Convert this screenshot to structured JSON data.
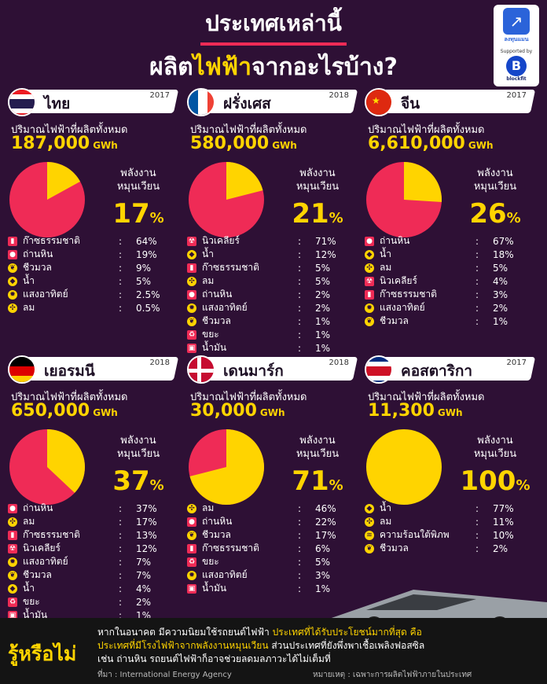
{
  "title": {
    "line1": "ประเทศเหล่านี้",
    "line2_a": "ผลิต",
    "line2_hl": "ไฟฟ้า",
    "line2_b": "จากอะไรบ้าง?"
  },
  "logo": {
    "brand": "ลงทุนแมน",
    "supported": "Supported by",
    "sponsor_mark": "B",
    "sponsor": "blockfit"
  },
  "common": {
    "gen_label": "ปริมาณไฟฟ้าที่ผลิตทั้งหมด",
    "unit": "GWh",
    "ren_line1": "พลังงาน",
    "ren_line2": "หมุนเวียน",
    "colon": ":"
  },
  "colors": {
    "pie_main": "#ef2b56",
    "pie_renewable": "#ffd400",
    "background": "#2e1035"
  },
  "countries": [
    {
      "name": "ไทย",
      "year": "2017",
      "total": "187,000",
      "renewable": "17",
      "renewable_pct_symbol": "%",
      "items": [
        {
          "label": "ก๊าซธรรมชาติ",
          "value": "64%",
          "icon": "gas-icon"
        },
        {
          "label": "ถ่านหิน",
          "value": "19%",
          "icon": "coal-icon"
        },
        {
          "label": "ชีวมวล",
          "value": "9%",
          "icon": "leaf-icon"
        },
        {
          "label": "น้ำ",
          "value": "5%",
          "icon": "water-icon"
        },
        {
          "label": "แสงอาทิตย์",
          "value": "2.5%",
          "icon": "sun-icon"
        },
        {
          "label": "ลม",
          "value": "0.5%",
          "icon": "wind-icon"
        }
      ]
    },
    {
      "name": "ฝรั่งเศส",
      "year": "2018",
      "total": "580,000",
      "renewable": "21",
      "renewable_pct_symbol": "%",
      "items": [
        {
          "label": "นิวเคลียร์",
          "value": "71%",
          "icon": "nuclear-icon"
        },
        {
          "label": "น้ำ",
          "value": "12%",
          "icon": "water-icon"
        },
        {
          "label": "ก๊าซธรรมชาติ",
          "value": "5%",
          "icon": "gas-icon"
        },
        {
          "label": "ลม",
          "value": "5%",
          "icon": "wind-icon"
        },
        {
          "label": "ถ่านหิน",
          "value": "2%",
          "icon": "coal-icon"
        },
        {
          "label": "แสงอาทิตย์",
          "value": "2%",
          "icon": "sun-icon"
        },
        {
          "label": "ชีวมวล",
          "value": "1%",
          "icon": "leaf-icon"
        },
        {
          "label": "ขยะ",
          "value": "1%",
          "icon": "waste-icon"
        },
        {
          "label": "น้ำมัน",
          "value": "1%",
          "icon": "oil-icon"
        }
      ]
    },
    {
      "name": "จีน",
      "year": "2017",
      "total": "6,610,000",
      "renewable": "26",
      "renewable_pct_symbol": "%",
      "items": [
        {
          "label": "ถ่านหิน",
          "value": "67%",
          "icon": "coal-icon"
        },
        {
          "label": "น้ำ",
          "value": "18%",
          "icon": "water-icon"
        },
        {
          "label": "ลม",
          "value": "5%",
          "icon": "wind-icon"
        },
        {
          "label": "นิวเคลียร์",
          "value": "4%",
          "icon": "nuclear-icon"
        },
        {
          "label": "ก๊าซธรรมชาติ",
          "value": "3%",
          "icon": "gas-icon"
        },
        {
          "label": "แสงอาทิตย์",
          "value": "2%",
          "icon": "sun-icon"
        },
        {
          "label": "ชีวมวล",
          "value": "1%",
          "icon": "leaf-icon"
        }
      ]
    },
    {
      "name": "เยอรมนี",
      "year": "2018",
      "total": "650,000",
      "renewable": "37",
      "renewable_pct_symbol": "%",
      "items": [
        {
          "label": "ถ่านหิน",
          "value": "37%",
          "icon": "coal-icon"
        },
        {
          "label": "ลม",
          "value": "17%",
          "icon": "wind-icon"
        },
        {
          "label": "ก๊าซธรรมชาติ",
          "value": "13%",
          "icon": "gas-icon"
        },
        {
          "label": "นิวเคลียร์",
          "value": "12%",
          "icon": "nuclear-icon"
        },
        {
          "label": "แสงอาทิตย์",
          "value": "7%",
          "icon": "sun-icon"
        },
        {
          "label": "ชีวมวล",
          "value": "7%",
          "icon": "leaf-icon"
        },
        {
          "label": "น้ำ",
          "value": "4%",
          "icon": "water-icon"
        },
        {
          "label": "ขยะ",
          "value": "2%",
          "icon": "waste-icon"
        },
        {
          "label": "น้ำมัน",
          "value": "1%",
          "icon": "oil-icon"
        }
      ]
    },
    {
      "name": "เดนมาร์ก",
      "year": "2018",
      "total": "30,000",
      "renewable": "71",
      "renewable_pct_symbol": "%",
      "items": [
        {
          "label": "ลม",
          "value": "46%",
          "icon": "wind-icon"
        },
        {
          "label": "ถ่านหิน",
          "value": "22%",
          "icon": "coal-icon"
        },
        {
          "label": "ชีวมวล",
          "value": "17%",
          "icon": "leaf-icon"
        },
        {
          "label": "ก๊าซธรรมชาติ",
          "value": "6%",
          "icon": "gas-icon"
        },
        {
          "label": "ขยะ",
          "value": "5%",
          "icon": "waste-icon"
        },
        {
          "label": "แสงอาทิตย์",
          "value": "3%",
          "icon": "sun-icon"
        },
        {
          "label": "น้ำมัน",
          "value": "1%",
          "icon": "oil-icon"
        }
      ]
    },
    {
      "name": "คอสตาริกา",
      "year": "2017",
      "total": "11,300",
      "renewable": "100",
      "renewable_pct_symbol": "%",
      "items": [
        {
          "label": "น้ำ",
          "value": "77%",
          "icon": "water-icon"
        },
        {
          "label": "ลม",
          "value": "11%",
          "icon": "wind-icon"
        },
        {
          "label": "ความร้อนใต้พิภพ",
          "value": "10%",
          "icon": "geothermal-icon"
        },
        {
          "label": "ชีวมวล",
          "value": "2%",
          "icon": "leaf-icon"
        }
      ]
    }
  ],
  "chart_data": {
    "type": "pie",
    "charts": [
      {
        "name": "ไทย",
        "renewable": 17
      },
      {
        "name": "ฝรั่งเศส",
        "renewable": 21
      },
      {
        "name": "จีน",
        "renewable": 26
      },
      {
        "name": "เยอรมนี",
        "renewable": 37
      },
      {
        "name": "เดนมาร์ก",
        "renewable": 71
      },
      {
        "name": "คอสตาริกา",
        "renewable": 100
      }
    ]
  },
  "footer": {
    "heading": "รู้หรือไม่",
    "line1_a": "หากในอนาคต มีความนิยมใช้รถยนต์ไฟฟ้า ",
    "line1_hl": "ประเทศที่ได้รับประโยชน์มากที่สุด คือ",
    "line2_hl": "ประเทศที่มีโรงไฟฟ้าจากพลังงานหมุนเวียน",
    "line2_b": " ส่วนประเทศที่ยังพึ่งพาเชื้อเพลิงฟอสซิล",
    "line3": "เช่น ถ่านหิน รถยนต์ไฟฟ้าก็อาจช่วยลดมลภาวะได้ไม่เต็มที่",
    "source": "ที่มา : International Energy Agency",
    "remark": "หมายเหตุ : เฉพาะการผลิตไฟฟ้าภายในประเทศ"
  }
}
